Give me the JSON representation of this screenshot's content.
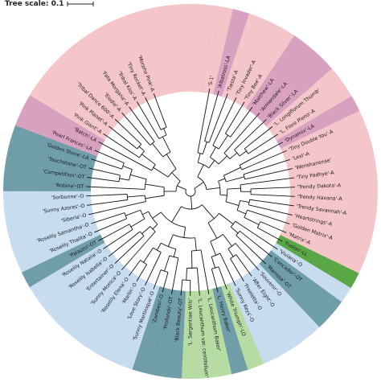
{
  "scale": {
    "label": "Tree scale: 0.1"
  },
  "colors": {
    "A": "#f4c6c9",
    "LA": "#d9a1c0",
    "OT": "#6f9ea8",
    "O": "#c7dcef",
    "LL": "#5aa845",
    "LO": "#b6dba3",
    "branch": "#111111"
  },
  "leaves": [
    {
      "label": "'S-1'",
      "group": "A"
    },
    {
      "label": "'Albatross'-LA",
      "group": "LA"
    },
    {
      "label": "'Tiesta'-A",
      "group": "A"
    },
    {
      "label": "'Tiny Invader'-A",
      "group": "A"
    },
    {
      "label": "'Tiny Bee'-A",
      "group": "A"
    },
    {
      "label": "'Matthew'-LA",
      "group": "LA"
    },
    {
      "label": "'Armandale'-LA",
      "group": "LA"
    },
    {
      "label": "'Black Silver'-LA",
      "group": "LA"
    },
    {
      "label": "'L. Longiflorum Thumb'",
      "group": "A"
    },
    {
      "label": "'L. Flore Pleno'-A",
      "group": "A"
    },
    {
      "label": "'Dynamix'-LA",
      "group": "LA"
    },
    {
      "label": "'Tiny Double You'-A",
      "group": "A"
    },
    {
      "label": "'Lexi'-A",
      "group": "A"
    },
    {
      "label": "'Wenshanense'",
      "group": "A"
    },
    {
      "label": "'Tiny Padhye'-A",
      "group": "A"
    },
    {
      "label": "'Trendy Dakota'-A",
      "group": "A"
    },
    {
      "label": "'Trendy Havana'-A",
      "group": "A"
    },
    {
      "label": "'Trendy Savannah'-A",
      "group": "A"
    },
    {
      "label": "'Heartstrings'-A",
      "group": "A"
    },
    {
      "label": "'Golden Matrix'-A",
      "group": "A"
    },
    {
      "label": "'Matrix'-A",
      "group": "A"
    },
    {
      "label": "'Fusion'-LL",
      "group": "LL"
    },
    {
      "label": "'Viviana'-O",
      "group": "O"
    },
    {
      "label": "'Concador'-OT",
      "group": "OT"
    },
    {
      "label": "'Manissa'-OT",
      "group": "OT"
    },
    {
      "label": "'Souvenir'-O",
      "group": "O"
    },
    {
      "label": "'After Eight'-O",
      "group": "O"
    },
    {
      "label": "'Freeletta'-O",
      "group": "O"
    },
    {
      "label": "'Sunny Keys'-O",
      "group": "O"
    },
    {
      "label": "'White Triumph'-LO",
      "group": "LO"
    },
    {
      "label": "'L. Henry Baker'",
      "group": "OT"
    },
    {
      "label": "'L. Leucanthum Baker'",
      "group": "LO"
    },
    {
      "label": "'L. Leucanthum var. centifolium'",
      "group": "LO"
    },
    {
      "label": "'L. Sargentiae Wils'",
      "group": "LO"
    },
    {
      "label": "'Black Beauty'-OT",
      "group": "OT"
    },
    {
      "label": "'Profundo'-OT",
      "group": "OT"
    },
    {
      "label": "'Zambesi'-O",
      "group": "OT"
    },
    {
      "label": "'Sunny Martinique'-O",
      "group": "O"
    },
    {
      "label": "'Love Story'-O",
      "group": "O"
    },
    {
      "label": "'Marlin'-O",
      "group": "O"
    },
    {
      "label": "'Roselily Elena'-O",
      "group": "O"
    },
    {
      "label": "'Sunny Monica'-O",
      "group": "O"
    },
    {
      "label": "'Entertainer'-O",
      "group": "O"
    },
    {
      "label": "'Roselily Isabella'-O",
      "group": "O"
    },
    {
      "label": "'Roselily Natalia'-O",
      "group": "O"
    },
    {
      "label": "'Palazzo'-OT",
      "group": "OT"
    },
    {
      "label": "'Roselily Thalita'-O",
      "group": "O"
    },
    {
      "label": "'Roselily Samantha'-O",
      "group": "O"
    },
    {
      "label": "'Siberia'-O",
      "group": "O"
    },
    {
      "label": "'Sunny Azores'-O",
      "group": "O"
    },
    {
      "label": "'Sorbonne'-O",
      "group": "O"
    },
    {
      "label": "'Robina'-OT",
      "group": "OT"
    },
    {
      "label": "'Competition'-OT",
      "group": "OT"
    },
    {
      "label": "'Touchstone'-OT",
      "group": "OT"
    },
    {
      "label": "'Golden Stone'-LA",
      "group": "OT"
    },
    {
      "label": "'Pearl Frances'-LA",
      "group": "LA"
    },
    {
      "label": "'Batch'-LA",
      "group": "LA"
    },
    {
      "label": "'Pink Giant'-A",
      "group": "A"
    },
    {
      "label": "'Pink Planet'-A",
      "group": "A"
    },
    {
      "label": "'Tribal Dance 600'-A",
      "group": "A"
    },
    {
      "label": "'Elodie'-A",
      "group": "A"
    },
    {
      "label": "'Fata Morgana'-A",
      "group": "A"
    },
    {
      "label": "'Tribal Kiss'-A",
      "group": "A"
    },
    {
      "label": "'Tiny Rocket'-A",
      "group": "A"
    },
    {
      "label": "'Morpho Pink'-A",
      "group": "A"
    }
  ]
}
